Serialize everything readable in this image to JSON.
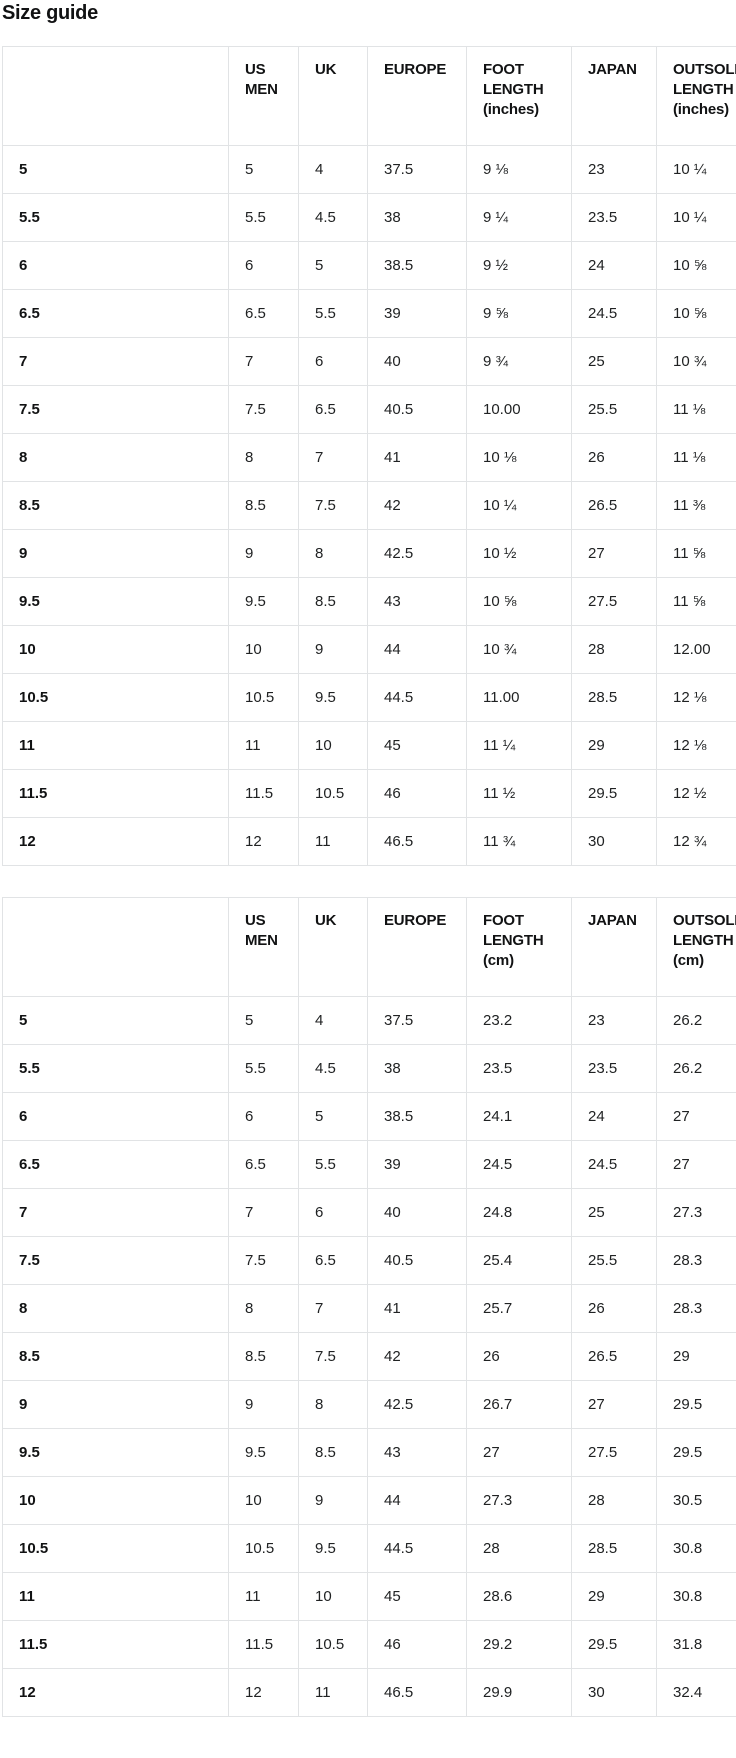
{
  "page": {
    "title": "Size guide"
  },
  "colors": {
    "background": "#ffffff",
    "table_border": "#e1e3e5",
    "text": "#202223",
    "heading_text": "#111213"
  },
  "tables": [
    {
      "name": "size-table-inches",
      "columns": [
        "",
        "US MEN",
        "UK",
        "EUROPE",
        "FOOT LENGTH (inches)",
        "JAPAN",
        "OUTSOLE LENGTH (inches)"
      ],
      "rows": [
        [
          "5",
          "5",
          "4",
          "37.5",
          "9 ⅛",
          "23",
          "10 ¼"
        ],
        [
          "5.5",
          "5.5",
          "4.5",
          "38",
          "9 ¼",
          "23.5",
          "10 ¼"
        ],
        [
          "6",
          "6",
          "5",
          "38.5",
          "9 ½",
          "24",
          "10 ⅝"
        ],
        [
          "6.5",
          "6.5",
          "5.5",
          "39",
          "9 ⅝",
          "24.5",
          "10 ⅝"
        ],
        [
          "7",
          "7",
          "6",
          "40",
          "9 ¾",
          "25",
          "10 ¾"
        ],
        [
          "7.5",
          "7.5",
          "6.5",
          "40.5",
          "10.00",
          "25.5",
          "11 ⅛"
        ],
        [
          "8",
          "8",
          "7",
          "41",
          "10 ⅛",
          "26",
          "11 ⅛"
        ],
        [
          "8.5",
          "8.5",
          "7.5",
          "42",
          "10 ¼",
          "26.5",
          "11 ⅜"
        ],
        [
          "9",
          "9",
          "8",
          "42.5",
          "10 ½",
          "27",
          "11 ⅝"
        ],
        [
          "9.5",
          "9.5",
          "8.5",
          "43",
          "10 ⅝",
          "27.5",
          "11 ⅝"
        ],
        [
          "10",
          "10",
          "9",
          "44",
          "10 ¾",
          "28",
          "12.00"
        ],
        [
          "10.5",
          "10.5",
          "9.5",
          "44.5",
          "11.00",
          "28.5",
          "12 ⅛"
        ],
        [
          "11",
          "11",
          "10",
          "45",
          "11 ¼",
          "29",
          "12 ⅛"
        ],
        [
          "11.5",
          "11.5",
          "10.5",
          "46",
          "11 ½",
          "29.5",
          "12 ½"
        ],
        [
          "12",
          "12",
          "11",
          "46.5",
          "11 ¾",
          "30",
          "12 ¾"
        ]
      ]
    },
    {
      "name": "size-table-cm",
      "columns": [
        "",
        "US MEN",
        "UK",
        "EUROPE",
        "FOOT LENGTH (cm)",
        "JAPAN",
        "OUTSOLE LENGTH (cm)"
      ],
      "rows": [
        [
          "5",
          "5",
          "4",
          "37.5",
          "23.2",
          "23",
          "26.2"
        ],
        [
          "5.5",
          "5.5",
          "4.5",
          "38",
          "23.5",
          "23.5",
          "26.2"
        ],
        [
          "6",
          "6",
          "5",
          "38.5",
          "24.1",
          "24",
          "27"
        ],
        [
          "6.5",
          "6.5",
          "5.5",
          "39",
          "24.5",
          "24.5",
          "27"
        ],
        [
          "7",
          "7",
          "6",
          "40",
          "24.8",
          "25",
          "27.3"
        ],
        [
          "7.5",
          "7.5",
          "6.5",
          "40.5",
          "25.4",
          "25.5",
          "28.3"
        ],
        [
          "8",
          "8",
          "7",
          "41",
          "25.7",
          "26",
          "28.3"
        ],
        [
          "8.5",
          "8.5",
          "7.5",
          "42",
          "26",
          "26.5",
          "29"
        ],
        [
          "9",
          "9",
          "8",
          "42.5",
          "26.7",
          "27",
          "29.5"
        ],
        [
          "9.5",
          "9.5",
          "8.5",
          "43",
          "27",
          "27.5",
          "29.5"
        ],
        [
          "10",
          "10",
          "9",
          "44",
          "27.3",
          "28",
          "30.5"
        ],
        [
          "10.5",
          "10.5",
          "9.5",
          "44.5",
          "28",
          "28.5",
          "30.8"
        ],
        [
          "11",
          "11",
          "10",
          "45",
          "28.6",
          "29",
          "30.8"
        ],
        [
          "11.5",
          "11.5",
          "10.5",
          "46",
          "29.2",
          "29.5",
          "31.8"
        ],
        [
          "12",
          "12",
          "11",
          "46.5",
          "29.9",
          "30",
          "32.4"
        ]
      ]
    }
  ]
}
